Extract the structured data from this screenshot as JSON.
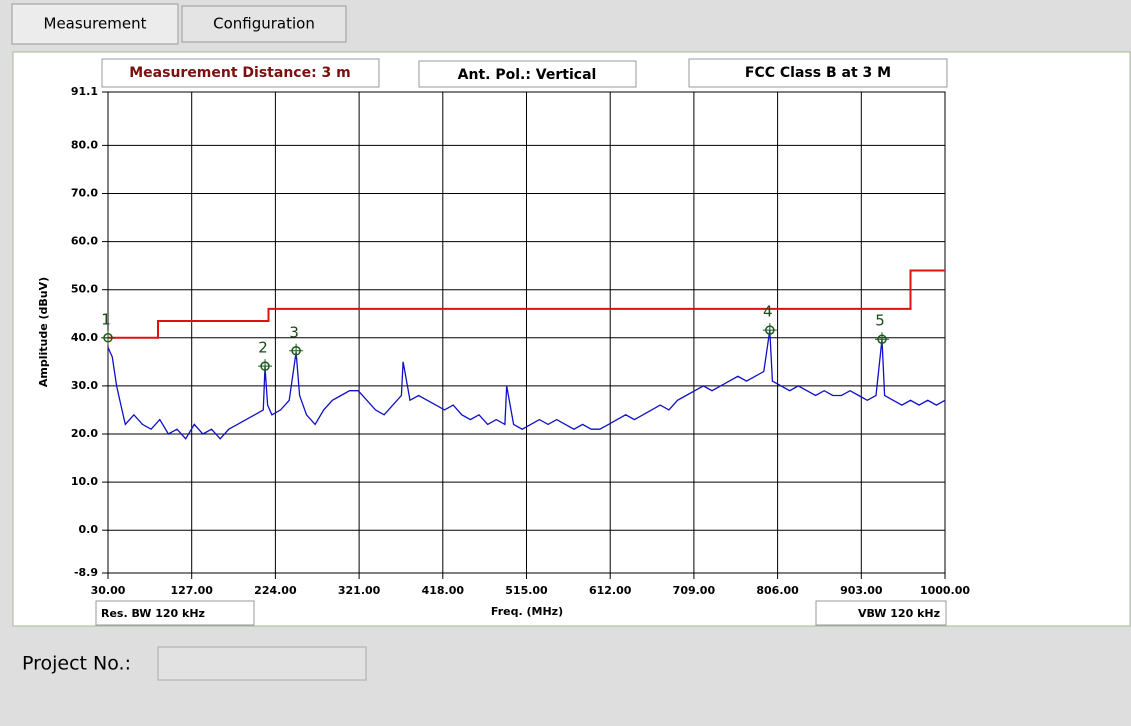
{
  "tabs": [
    "Measurement",
    "Configuration"
  ],
  "chart_data": {
    "type": "line",
    "annotations": [
      "Measurement Distance: 3 m",
      "Ant. Pol.: Vertical",
      "FCC Class B at 3 M"
    ],
    "footnotes": [
      "Res. BW 120 kHz",
      "VBW 120 kHz"
    ],
    "x_label": "Freq. (MHz)",
    "y_label": "Amplitude (dBuV)",
    "xlim": [
      30,
      1000
    ],
    "ylim": [
      -8.9,
      91.1
    ],
    "xticks": [
      {
        "value": 30,
        "label": "30.00"
      },
      {
        "value": 127,
        "label": "127.00"
      },
      {
        "value": 224,
        "label": "224.00"
      },
      {
        "value": 321,
        "label": "321.00"
      },
      {
        "value": 418,
        "label": "418.00"
      },
      {
        "value": 515,
        "label": "515.00"
      },
      {
        "value": 612,
        "label": "612.00"
      },
      {
        "value": 709,
        "label": "709.00"
      },
      {
        "value": 806,
        "label": "806.00"
      },
      {
        "value": 903,
        "label": "903.00"
      },
      {
        "value": 1000,
        "label": "1000.00"
      }
    ],
    "yticks": [
      -8.9,
      {
        "value": 0,
        "label": "0.0"
      },
      {
        "value": 10,
        "label": "10.0"
      },
      {
        "value": 20,
        "label": "20.0"
      },
      {
        "value": 30,
        "label": "30.0"
      },
      {
        "value": 40,
        "label": "40.0"
      },
      {
        "value": 50,
        "label": "50.0"
      },
      {
        "value": 60,
        "label": "60.0"
      },
      {
        "value": 70,
        "label": "70.0"
      },
      {
        "value": 80,
        "label": "80.0"
      },
      91.1
    ],
    "grid": true,
    "series": [
      {
        "color": "#1010c8",
        "x": [
          30,
          35,
          40,
          45,
          50,
          60,
          70,
          80,
          90,
          100,
          110,
          120,
          130,
          140,
          150,
          160,
          170,
          180,
          190,
          200,
          210,
          212,
          215,
          220,
          230,
          240,
          248,
          252,
          260,
          270,
          280,
          290,
          300,
          310,
          320,
          330,
          340,
          350,
          360,
          370,
          372,
          380,
          390,
          400,
          410,
          420,
          430,
          440,
          450,
          460,
          470,
          480,
          490,
          492,
          500,
          510,
          520,
          530,
          540,
          550,
          560,
          570,
          580,
          590,
          600,
          610,
          620,
          630,
          640,
          650,
          660,
          670,
          680,
          690,
          700,
          710,
          720,
          730,
          740,
          750,
          760,
          770,
          790,
          797,
          800,
          810,
          820,
          830,
          840,
          850,
          860,
          870,
          880,
          890,
          900,
          910,
          920,
          927,
          930,
          940,
          950,
          960,
          970,
          980,
          990,
          1000
        ],
        "values": [
          38,
          36,
          30,
          26,
          22,
          24,
          22,
          21,
          23,
          20,
          21,
          19,
          22,
          20,
          21,
          19,
          21,
          22,
          23,
          24,
          25,
          34,
          26,
          24,
          25,
          27,
          37,
          28,
          24,
          22,
          25,
          27,
          28,
          29,
          29,
          27,
          25,
          24,
          26,
          28,
          35,
          27,
          28,
          27,
          26,
          25,
          26,
          24,
          23,
          24,
          22,
          23,
          22,
          30,
          22,
          21,
          22,
          23,
          22,
          23,
          22,
          21,
          22,
          21,
          21,
          22,
          23,
          24,
          23,
          24,
          25,
          26,
          25,
          27,
          28,
          29,
          30,
          29,
          30,
          31,
          32,
          31,
          33,
          41.6,
          31,
          30,
          29,
          30,
          29,
          28,
          29,
          28,
          28,
          29,
          28,
          27,
          28,
          39.7,
          28,
          27,
          26,
          27,
          26,
          27,
          26,
          27
        ]
      },
      {
        "color": "#e01010",
        "x": [
          30,
          88,
          88,
          216,
          216,
          960,
          960,
          1000
        ],
        "values": [
          40,
          40,
          43.5,
          43.5,
          46,
          46,
          54,
          54
        ]
      }
    ],
    "markers": [
      {
        "label": "1",
        "x": 30,
        "value": 40.0
      },
      {
        "label": "2",
        "x": 212,
        "value": 34.1
      },
      {
        "label": "3",
        "x": 248,
        "value": 37.3
      },
      {
        "label": "4",
        "x": 797,
        "value": 41.6
      },
      {
        "label": "5",
        "x": 927,
        "value": 39.7
      }
    ]
  },
  "project_label": "Project No.:"
}
